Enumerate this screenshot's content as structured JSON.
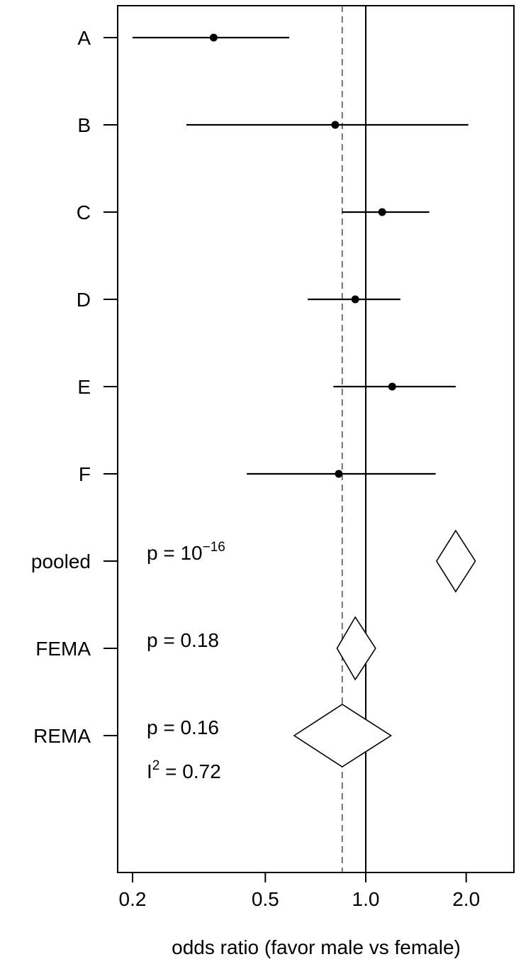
{
  "chart_data": {
    "type": "forest",
    "title": "",
    "xlabel": "odds ratio (favor male vs female)",
    "ylabel": "",
    "x_scale": "log",
    "xlim": [
      0.19,
      3.0
    ],
    "x_ticks": [
      0.2,
      0.5,
      1.0,
      2.0
    ],
    "x_tick_labels": [
      "0.2",
      "0.5",
      "1.0",
      "2.0"
    ],
    "grid": false,
    "legend": "none",
    "reference_line": 1.0,
    "dashed_reference": 0.85,
    "studies": [
      {
        "label": "A",
        "estimate": 0.35,
        "lower": 0.2,
        "upper": 0.59
      },
      {
        "label": "B",
        "estimate": 0.81,
        "lower": 0.29,
        "upper": 2.03
      },
      {
        "label": "C",
        "estimate": 1.12,
        "lower": 0.85,
        "upper": 1.55
      },
      {
        "label": "D",
        "estimate": 0.93,
        "lower": 0.67,
        "upper": 1.27
      },
      {
        "label": "E",
        "estimate": 1.2,
        "lower": 0.8,
        "upper": 1.86
      },
      {
        "label": "F",
        "estimate": 0.83,
        "lower": 0.44,
        "upper": 1.62
      }
    ],
    "summaries": [
      {
        "label": "pooled",
        "estimate": 1.86,
        "lower": 1.63,
        "upper": 2.13,
        "annotation": "p = 10",
        "annotation_sup": "−16"
      },
      {
        "label": "FEMA",
        "estimate": 0.93,
        "lower": 0.82,
        "upper": 1.07,
        "annotation": "p = 0.18"
      },
      {
        "label": "REMA",
        "estimate": 0.85,
        "lower": 0.61,
        "upper": 1.19,
        "annotation": "p = 0.16",
        "annotation2": "I",
        "annotation2_sup": "2",
        "annotation2_rest": " = 0.72"
      }
    ]
  }
}
